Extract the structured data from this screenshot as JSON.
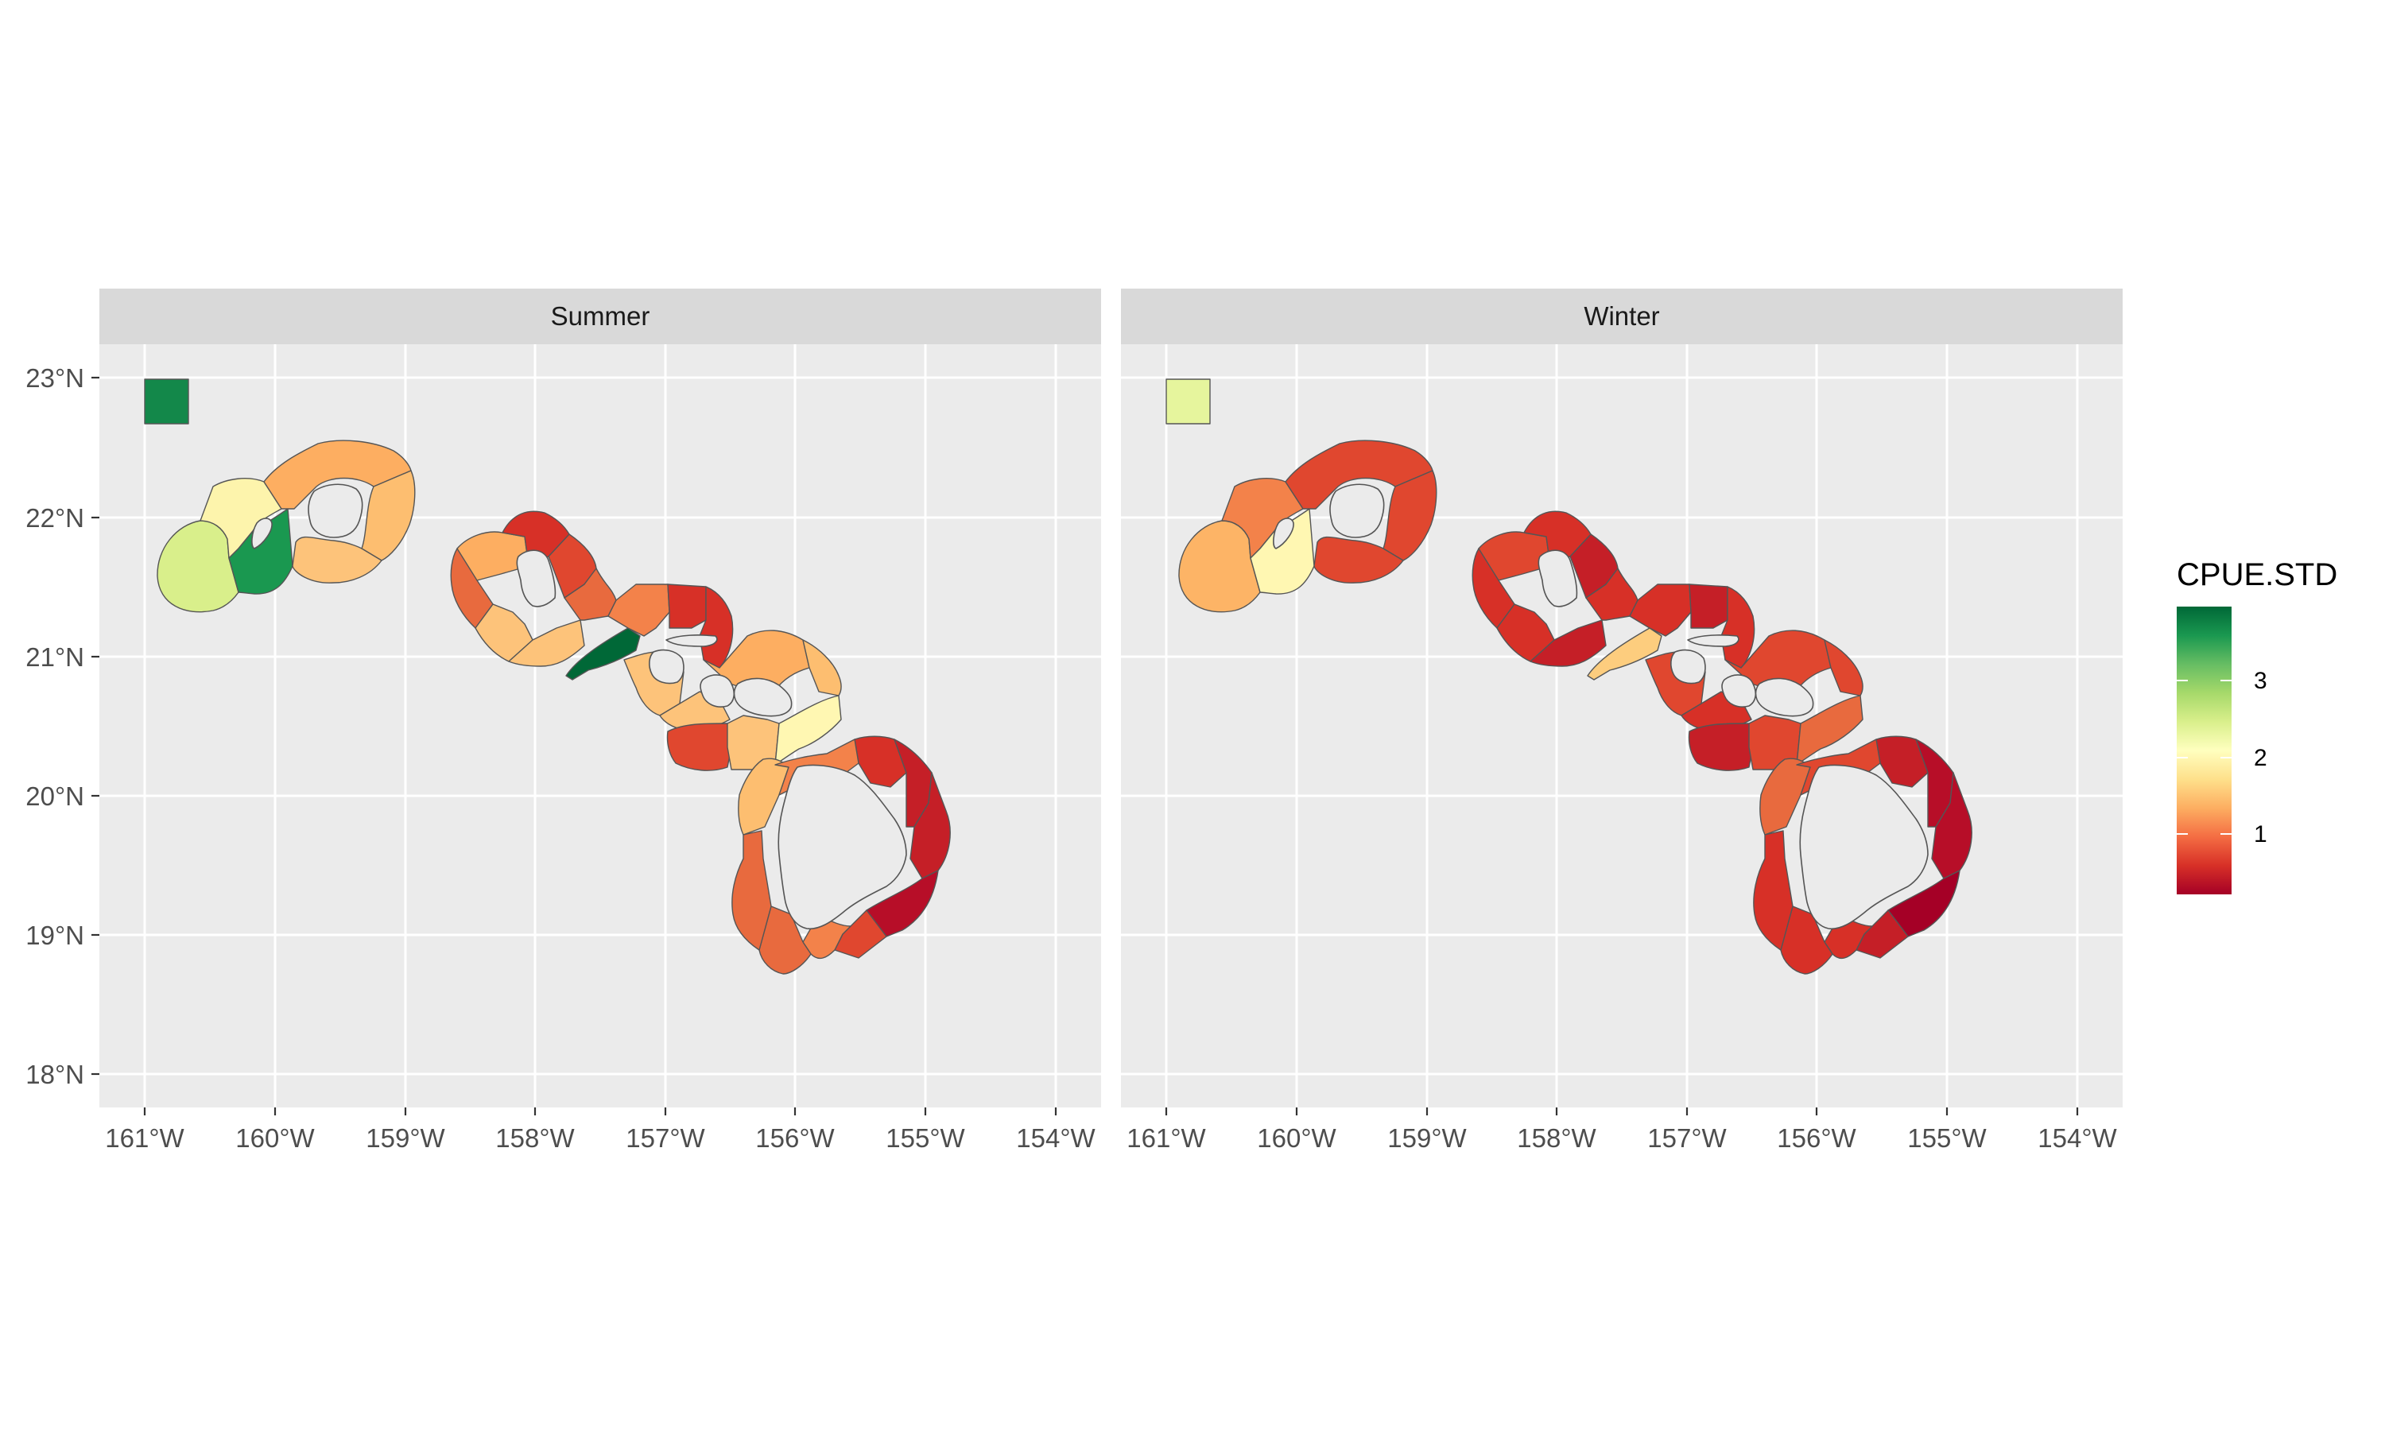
{
  "figure": {
    "panels": [
      {
        "title": "Summer",
        "colors": {
          "northwest_box": "#13884a",
          "niihau_west": "#d9ef8b",
          "niihau_north": "#fdf4ac",
          "niihau_east": "#1a9850",
          "kauai_north": "#fdae61",
          "kauai_east": "#fdbe70",
          "kauai_south": "#fdc37a",
          "oahu_nw": "#fdae61",
          "oahu_west": "#e86a3e",
          "oahu_north": "#d73027",
          "oahu_ne": "#e0472f",
          "oahu_sw": "#fdc37a",
          "oahu_south": "#fdc37a",
          "oahu_se": "#e86a3e",
          "penguin_bank": "#006837",
          "molokai_n1": "#f3824a",
          "molokai_n2": "#d73027",
          "molokai_ne": "#d73027",
          "lanai_s": "#fdc37a",
          "lanai_se": "#fdc37a",
          "maui_n": "#fdae61",
          "maui_ne": "#fdbe70",
          "kahoolawe_s": "#e0472f",
          "maui_s": "#fdc37a",
          "maui_se": "#fff7b2",
          "hawaii_n": "#d73027",
          "hawaii_ne": "#c51f27",
          "hawaii_e": "#c51f27",
          "hawaii_se": "#b70e28",
          "hawaii_s": "#e0472f",
          "hawaii_sw": "#e86a3e",
          "hawaii_w": "#e86a3e",
          "hawaii_nw": "#fdbe70",
          "hawaii_nw2": "#f3824a",
          "hawaii_s2": "#f3824a"
        }
      },
      {
        "title": "Winter",
        "colors": {
          "northwest_box": "#e6f59d",
          "niihau_west": "#fdb466",
          "niihau_north": "#f3824a",
          "niihau_east": "#fff7b2",
          "kauai_north": "#e0472f",
          "kauai_east": "#e0472f",
          "kauai_south": "#e0472f",
          "oahu_nw": "#e0472f",
          "oahu_west": "#d73027",
          "oahu_north": "#d73027",
          "oahu_ne": "#c51f27",
          "oahu_sw": "#d73027",
          "oahu_south": "#c51f27",
          "oahu_se": "#d73027",
          "penguin_bank": "#fdcd7e",
          "molokai_n1": "#d73027",
          "molokai_n2": "#c51f27",
          "molokai_ne": "#d73027",
          "lanai_s": "#e0472f",
          "lanai_se": "#d73027",
          "maui_n": "#e0472f",
          "maui_ne": "#e0472f",
          "kahoolawe_s": "#c51f27",
          "maui_s": "#e0472f",
          "maui_se": "#e86a3e",
          "hawaii_n": "#c51f27",
          "hawaii_ne": "#b70e28",
          "hawaii_e": "#b70e28",
          "hawaii_se": "#a50026",
          "hawaii_s": "#c51f27",
          "hawaii_sw": "#d73027",
          "hawaii_w": "#d73027",
          "hawaii_nw": "#e86a3e",
          "hawaii_nw2": "#e0472f",
          "hawaii_s2": "#d73027"
        }
      }
    ],
    "lon_ticks": [
      "161°W",
      "160°W",
      "159°W",
      "158°W",
      "157°W",
      "156°W",
      "155°W",
      "154°W"
    ],
    "lat_ticks": [
      "23°N",
      "22°N",
      "21°N",
      "20°N",
      "19°N",
      "18°N"
    ],
    "legend": {
      "title": "CPUE.STD",
      "labels": [
        "3",
        "2",
        "1"
      ],
      "gradient": [
        "#006837",
        "#1a9850",
        "#66bd63",
        "#a6d96a",
        "#d9ef8b",
        "#ffffbf",
        "#fee08b",
        "#fdae61",
        "#f46d43",
        "#d73027",
        "#a50026"
      ]
    }
  }
}
